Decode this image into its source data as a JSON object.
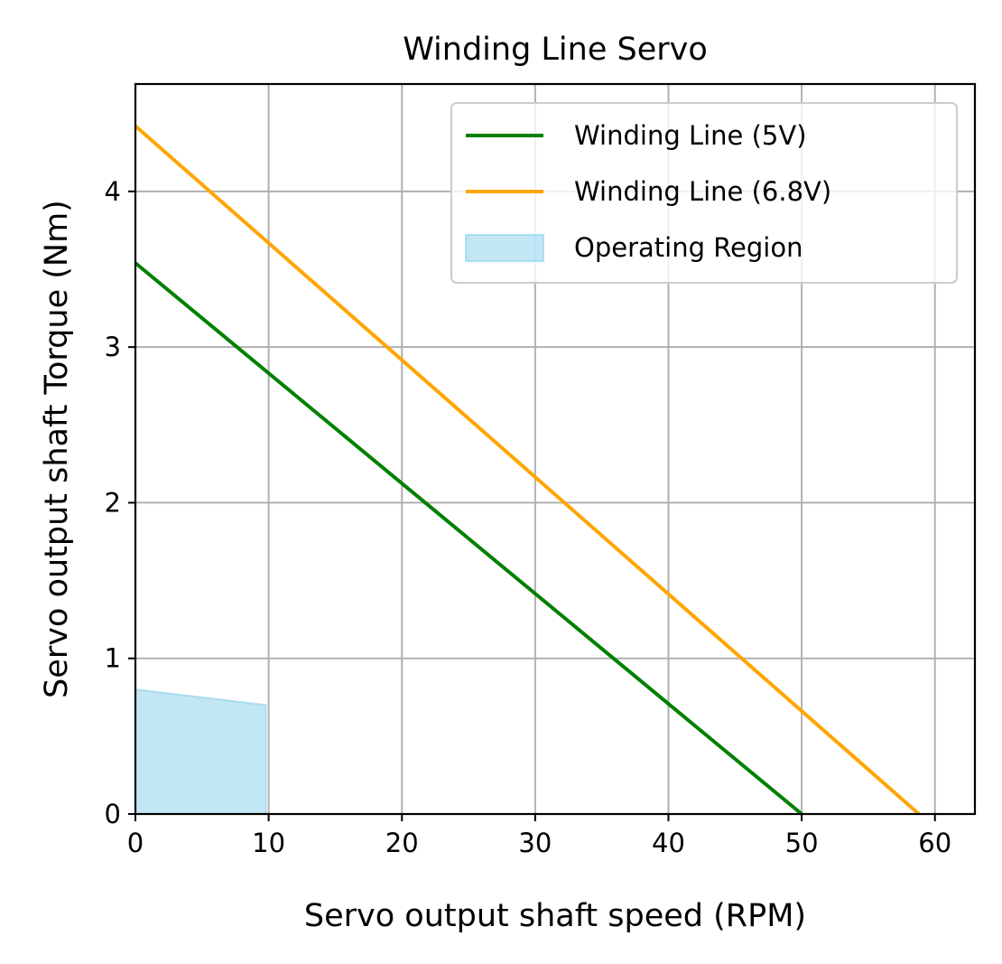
{
  "chart_data": {
    "type": "line",
    "title": "Winding Line Servo",
    "xlabel": "Servo output shaft speed (RPM)",
    "ylabel": "Servo output shaft Torque (Nm)",
    "xlim": [
      0,
      63
    ],
    "ylim": [
      0,
      4.69
    ],
    "xticks": [
      0,
      10,
      20,
      30,
      40,
      50,
      60
    ],
    "yticks": [
      0,
      1,
      2,
      3,
      4
    ],
    "grid": true,
    "legend_position": "upper right",
    "series": [
      {
        "name": "Winding Line (5V)",
        "type": "line",
        "color": "#008000",
        "x": [
          0,
          50
        ],
        "y": [
          3.54,
          0
        ]
      },
      {
        "name": "Winding Line (6.8V)",
        "type": "line",
        "color": "#ffa500",
        "x": [
          0,
          58.8
        ],
        "y": [
          4.42,
          0
        ]
      },
      {
        "name": "Operating Region",
        "type": "area",
        "color": "#87ceeb",
        "x": [
          0,
          9.8
        ],
        "y": [
          0.8,
          0.7
        ]
      }
    ]
  }
}
